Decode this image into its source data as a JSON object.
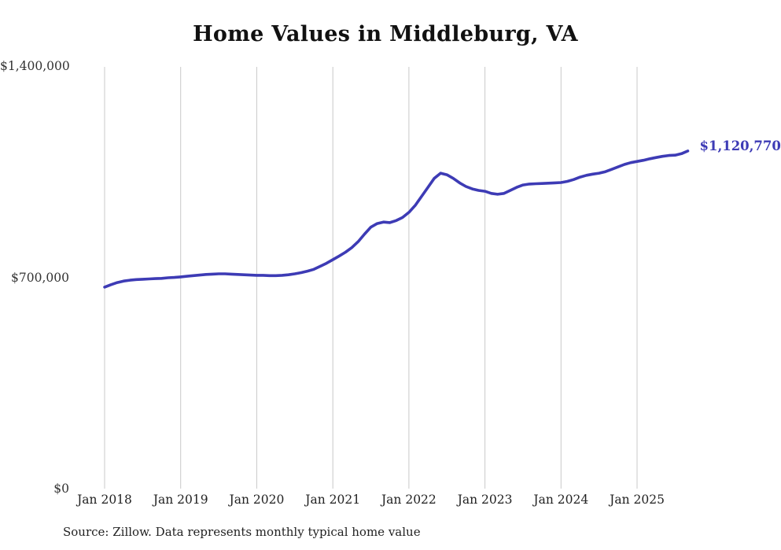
{
  "title": "Home Values in Middleburg, VA",
  "source_note": "Source: Zillow. Data represents monthly typical home value",
  "end_label": "$1,120,770",
  "colors": {
    "line": "#3d3bb5",
    "grid": "#c9c9c9",
    "title_text": "#111111",
    "axis_text": "#333333"
  },
  "chart_data": {
    "type": "line",
    "title": "Home Values in Middleburg, VA",
    "xlabel": "",
    "ylabel": "",
    "ylim": [
      0,
      1400000
    ],
    "grid": "vertical-only",
    "legend": "none",
    "x_start": "Jan 2018",
    "x_frequency": "monthly",
    "x_tick_labels": [
      "Jan 2018",
      "Jan 2019",
      "Jan 2020",
      "Jan 2021",
      "Jan 2022",
      "Jan 2023",
      "Jan 2024",
      "Jan 2025"
    ],
    "y_tick_labels": [
      "$0",
      "$700,000",
      "$1,400,000"
    ],
    "final_value": 1120770,
    "final_value_label": "$1,120,770",
    "series": [
      {
        "name": "Typical home value",
        "values": [
          669000,
          677000,
          684000,
          689000,
          692000,
          694000,
          695000,
          696000,
          697000,
          698000,
          700000,
          701000,
          703000,
          705000,
          707000,
          709000,
          711000,
          712000,
          713000,
          713000,
          712000,
          711000,
          710000,
          709000,
          708000,
          708000,
          707000,
          707000,
          708000,
          710000,
          713000,
          717000,
          722000,
          728000,
          738000,
          748000,
          760000,
          772000,
          785000,
          800000,
          820000,
          845000,
          868000,
          880000,
          885000,
          883000,
          890000,
          900000,
          917000,
          940000,
          970000,
          1000000,
          1030000,
          1047000,
          1042000,
          1030000,
          1015000,
          1003000,
          995000,
          990000,
          987000,
          980000,
          977000,
          980000,
          990000,
          1000000,
          1008000,
          1011000,
          1012000,
          1013000,
          1014000,
          1015000,
          1016000,
          1020000,
          1026000,
          1034000,
          1040000,
          1044000,
          1047000,
          1052000,
          1060000,
          1068000,
          1076000,
          1082000,
          1086000,
          1090000,
          1095000,
          1099000,
          1103000,
          1106000,
          1107000,
          1112000,
          1120770
        ]
      }
    ]
  }
}
